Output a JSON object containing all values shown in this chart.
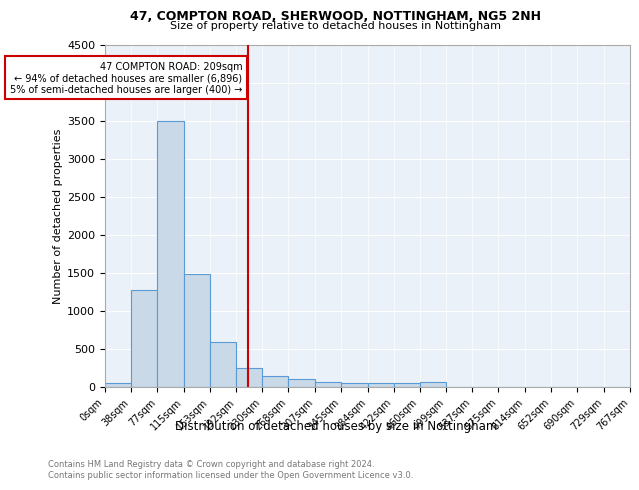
{
  "title1": "47, COMPTON ROAD, SHERWOOD, NOTTINGHAM, NG5 2NH",
  "title2": "Size of property relative to detached houses in Nottingham",
  "xlabel": "Distribution of detached houses by size in Nottingham",
  "ylabel": "Number of detached properties",
  "bin_edges": [
    0,
    38,
    77,
    115,
    153,
    192,
    230,
    268,
    307,
    345,
    384,
    422,
    460,
    499,
    537,
    575,
    614,
    652,
    690,
    729,
    767
  ],
  "bar_heights": [
    50,
    1280,
    3500,
    1480,
    590,
    250,
    140,
    100,
    65,
    50,
    50,
    50,
    60,
    0,
    0,
    0,
    0,
    0,
    0,
    0
  ],
  "bar_color": "#c9d9e8",
  "bar_edge_color": "#5b9bd5",
  "vline_x": 209,
  "vline_color": "#cc0000",
  "annotation_text": "47 COMPTON ROAD: 209sqm\n← 94% of detached houses are smaller (6,896)\n5% of semi-detached houses are larger (400) →",
  "annotation_box_color": "#ffffff",
  "annotation_box_edge": "#cc0000",
  "ylim": [
    0,
    4500
  ],
  "yticks": [
    0,
    500,
    1000,
    1500,
    2000,
    2500,
    3000,
    3500,
    4000,
    4500
  ],
  "tick_labels": [
    "0sqm",
    "38sqm",
    "77sqm",
    "115sqm",
    "153sqm",
    "192sqm",
    "230sqm",
    "268sqm",
    "307sqm",
    "345sqm",
    "384sqm",
    "422sqm",
    "460sqm",
    "499sqm",
    "537sqm",
    "575sqm",
    "614sqm",
    "652sqm",
    "690sqm",
    "729sqm",
    "767sqm"
  ],
  "footnote1": "Contains HM Land Registry data © Crown copyright and database right 2024.",
  "footnote2": "Contains public sector information licensed under the Open Government Licence v3.0.",
  "plot_bg_color": "#eaf1f8",
  "fig_bg_color": "#ffffff"
}
